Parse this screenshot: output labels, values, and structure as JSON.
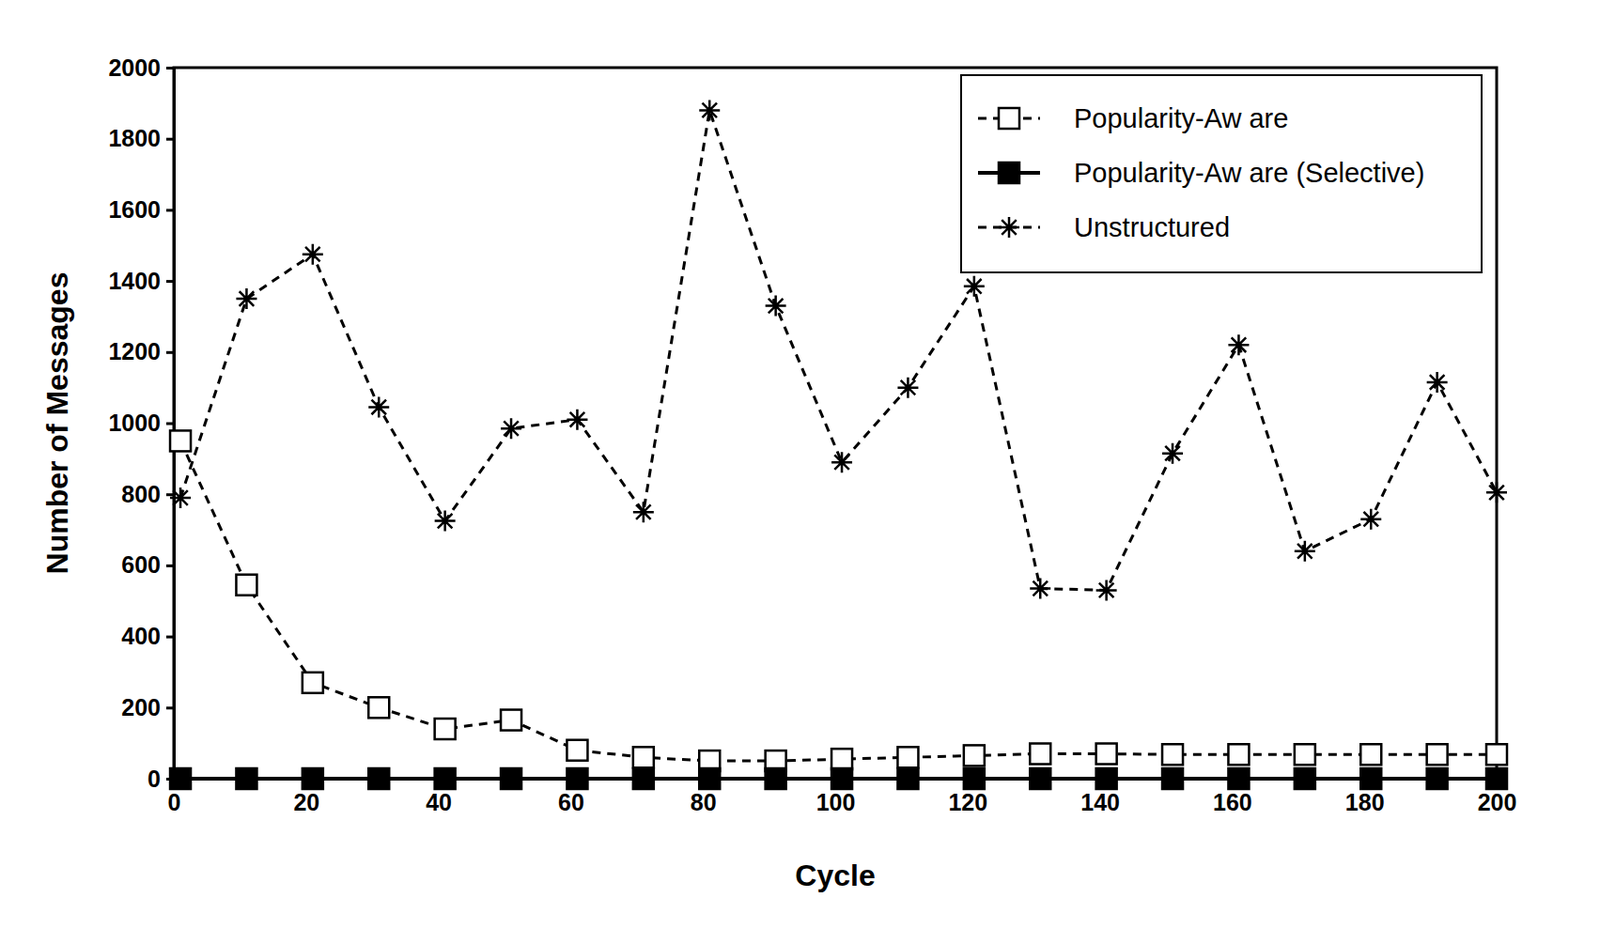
{
  "chart_data": {
    "type": "line",
    "x_label": "Cycle",
    "y_label": "Number of Messages",
    "x": [
      1,
      11,
      21,
      31,
      41,
      51,
      61,
      71,
      81,
      91,
      101,
      111,
      121,
      131,
      141,
      151,
      161,
      171,
      181,
      191,
      200
    ],
    "series": [
      {
        "name": "Popularity-Aw are",
        "color": "#000000",
        "marker": "square-open",
        "line_style": "dashed",
        "values": [
          950,
          545,
          270,
          200,
          140,
          165,
          80,
          60,
          50,
          50,
          55,
          60,
          65,
          70,
          70,
          68,
          68,
          68,
          68,
          68,
          68
        ]
      },
      {
        "name": "Popularity-Aw are (Selective)",
        "color": "#000000",
        "marker": "square",
        "line_style": "solid",
        "values": [
          0,
          0,
          0,
          0,
          0,
          0,
          0,
          0,
          0,
          0,
          0,
          0,
          0,
          0,
          0,
          0,
          0,
          0,
          0,
          0,
          0
        ]
      },
      {
        "name": "Unstructured",
        "color": "#000000",
        "marker": "asterisk",
        "line_style": "dashed",
        "values": [
          790,
          1350,
          1475,
          1045,
          725,
          985,
          1010,
          750,
          1880,
          1330,
          890,
          1100,
          1385,
          535,
          530,
          915,
          1220,
          640,
          730,
          1115,
          805
        ]
      }
    ],
    "xlim": [
      0,
      200
    ],
    "xticks": [
      0,
      20,
      40,
      60,
      80,
      100,
      120,
      140,
      160,
      180,
      200
    ],
    "ylim": [
      0,
      2000
    ],
    "yticks": [
      0,
      200,
      400,
      600,
      800,
      1000,
      1200,
      1400,
      1600,
      1800,
      2000
    ],
    "legend": "upper right",
    "grid": false
  }
}
